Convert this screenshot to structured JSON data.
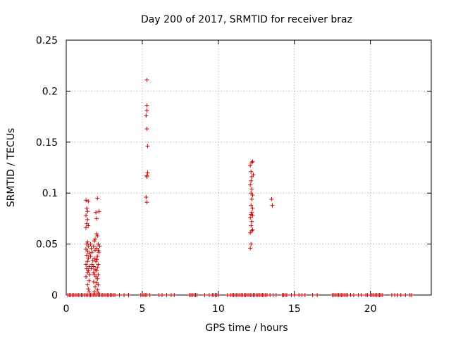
{
  "chart_data": {
    "type": "scatter",
    "title": "Day 200 of 2017, SRMTID for receiver braz",
    "xlabel": "GPS time / hours",
    "ylabel": "SRMTID / TECUs",
    "xlim": [
      0,
      24
    ],
    "ylim": [
      0,
      0.25
    ],
    "grid": true,
    "xticks": [
      0,
      5,
      10,
      15,
      20
    ],
    "xtick_labels": [
      "0",
      "5",
      "10",
      "15",
      "20"
    ],
    "yticks": [
      0,
      0.05,
      0.1,
      0.15,
      0.2,
      0.25
    ],
    "ytick_labels": [
      "0",
      "0.05",
      "0.1",
      "0.15",
      "0.2",
      "0.25"
    ],
    "marker": "+",
    "series_color": "#cc0000",
    "series": [
      {
        "name": "SRMTID",
        "points": [
          [
            1.3,
            0.093
          ],
          [
            1.35,
            0.085
          ],
          [
            1.4,
            0.082
          ],
          [
            1.45,
            0.092
          ],
          [
            1.3,
            0.078
          ],
          [
            1.4,
            0.074
          ],
          [
            1.35,
            0.07
          ],
          [
            1.3,
            0.066
          ],
          [
            1.45,
            0.068
          ],
          [
            1.4,
            0.052
          ],
          [
            1.35,
            0.05
          ],
          [
            1.45,
            0.048
          ],
          [
            1.3,
            0.045
          ],
          [
            1.4,
            0.043
          ],
          [
            1.5,
            0.041
          ],
          [
            1.35,
            0.039
          ],
          [
            1.45,
            0.036
          ],
          [
            1.4,
            0.033
          ],
          [
            1.3,
            0.03
          ],
          [
            1.5,
            0.028
          ],
          [
            1.35,
            0.026
          ],
          [
            1.45,
            0.024
          ],
          [
            1.4,
            0.022
          ],
          [
            1.55,
            0.02
          ],
          [
            1.3,
            0.018
          ],
          [
            1.5,
            0.014
          ],
          [
            1.4,
            0.01
          ],
          [
            1.45,
            0.006
          ],
          [
            1.5,
            0.003
          ],
          [
            1.6,
            0.05
          ],
          [
            1.65,
            0.046
          ],
          [
            1.7,
            0.042
          ],
          [
            1.6,
            0.038
          ],
          [
            1.75,
            0.034
          ],
          [
            1.7,
            0.03
          ],
          [
            1.65,
            0.026
          ],
          [
            1.8,
            0.022
          ],
          [
            1.85,
            0.053
          ],
          [
            1.9,
            0.055
          ],
          [
            1.8,
            0.048
          ],
          [
            1.9,
            0.044
          ],
          [
            1.85,
            0.036
          ],
          [
            1.95,
            0.033
          ],
          [
            1.8,
            0.028
          ],
          [
            1.9,
            0.025
          ],
          [
            1.85,
            0.02
          ],
          [
            1.95,
            0.018
          ],
          [
            1.8,
            0.013
          ],
          [
            1.9,
            0.008
          ],
          [
            1.85,
            0.003
          ],
          [
            1.95,
            0.081
          ],
          [
            2.0,
            0.075
          ],
          [
            2.05,
            0.095
          ],
          [
            2.0,
            0.06
          ],
          [
            2.05,
            0.058
          ],
          [
            2.1,
            0.05
          ],
          [
            2.0,
            0.046
          ],
          [
            2.1,
            0.044
          ],
          [
            2.05,
            0.038
          ],
          [
            2.0,
            0.035
          ],
          [
            2.1,
            0.03
          ],
          [
            2.05,
            0.027
          ],
          [
            2.0,
            0.024
          ],
          [
            2.1,
            0.02
          ],
          [
            2.05,
            0.016
          ],
          [
            2.0,
            0.012
          ],
          [
            2.1,
            0.01
          ],
          [
            2.05,
            0.005
          ],
          [
            2.15,
            0.082
          ],
          [
            2.2,
            0.048
          ],
          [
            2.15,
            0.042
          ],
          [
            2.1,
            0.002
          ],
          [
            5.3,
            0.211
          ],
          [
            5.3,
            0.186
          ],
          [
            5.3,
            0.181
          ],
          [
            5.25,
            0.176
          ],
          [
            5.3,
            0.163
          ],
          [
            5.35,
            0.146
          ],
          [
            5.35,
            0.12
          ],
          [
            5.3,
            0.117
          ],
          [
            5.3,
            0.116
          ],
          [
            5.25,
            0.096
          ],
          [
            5.3,
            0.091
          ],
          [
            12.1,
            0.127
          ],
          [
            12.15,
            0.121
          ],
          [
            12.2,
            0.13
          ],
          [
            12.25,
            0.131
          ],
          [
            12.3,
            0.118
          ],
          [
            12.2,
            0.116
          ],
          [
            12.15,
            0.112
          ],
          [
            12.1,
            0.108
          ],
          [
            12.2,
            0.104
          ],
          [
            12.15,
            0.1
          ],
          [
            12.25,
            0.098
          ],
          [
            12.2,
            0.094
          ],
          [
            12.15,
            0.088
          ],
          [
            12.25,
            0.085
          ],
          [
            12.2,
            0.081
          ],
          [
            12.15,
            0.079
          ],
          [
            12.25,
            0.078
          ],
          [
            12.1,
            0.076
          ],
          [
            12.2,
            0.072
          ],
          [
            12.15,
            0.068
          ],
          [
            12.25,
            0.064
          ],
          [
            12.2,
            0.063
          ],
          [
            12.1,
            0.061
          ],
          [
            12.15,
            0.05
          ],
          [
            12.1,
            0.046
          ],
          [
            13.5,
            0.094
          ],
          [
            13.55,
            0.088
          ]
        ],
        "zero_x": [
          0.1,
          0.2,
          0.3,
          0.4,
          0.5,
          0.6,
          0.7,
          0.8,
          0.9,
          1.0,
          1.1,
          1.2,
          1.3,
          1.4,
          1.5,
          1.6,
          1.7,
          1.8,
          1.9,
          2.0,
          2.1,
          2.2,
          2.3,
          2.4,
          2.5,
          2.6,
          2.7,
          2.8,
          2.9,
          3.0,
          3.1,
          3.2,
          3.5,
          3.8,
          4.1,
          4.9,
          5.0,
          5.1,
          5.2,
          5.3,
          5.5,
          6.1,
          6.3,
          6.6,
          6.9,
          7.1,
          8.1,
          8.2,
          8.3,
          8.4,
          8.5,
          8.6,
          9.1,
          9.4,
          9.6,
          9.7,
          9.8,
          9.9,
          10.0,
          10.6,
          10.8,
          10.9,
          11.0,
          11.1,
          11.2,
          11.3,
          11.4,
          11.5,
          11.6,
          11.7,
          11.8,
          11.9,
          12.0,
          12.1,
          12.2,
          12.3,
          12.4,
          12.5,
          12.6,
          12.7,
          12.8,
          12.9,
          13.0,
          13.1,
          13.2,
          13.4,
          13.6,
          13.8,
          14.2,
          14.3,
          14.4,
          14.5,
          14.8,
          15.0,
          15.3,
          15.5,
          15.7,
          16.2,
          16.5,
          17.5,
          17.6,
          17.7,
          17.8,
          17.9,
          18.0,
          18.1,
          18.2,
          18.3,
          18.4,
          18.5,
          18.7,
          18.9,
          19.2,
          19.4,
          19.7,
          19.8,
          20.0,
          20.1,
          20.2,
          20.3,
          20.4,
          20.5,
          20.6,
          20.7,
          20.8,
          21.4,
          21.6,
          21.8,
          22.0,
          22.3,
          22.6,
          22.7
        ]
      }
    ]
  }
}
